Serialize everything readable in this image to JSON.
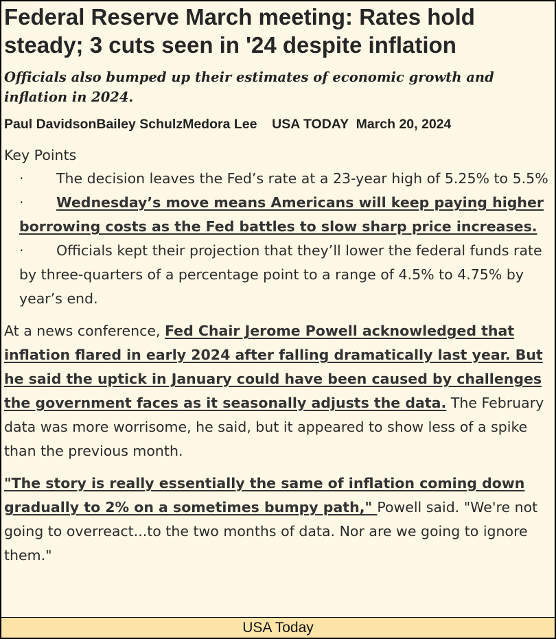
{
  "article": {
    "headline": "Federal Reserve March meeting: Rates hold steady; 3 cuts seen in '24 despite inflation",
    "subheadline": "Officials also bumped up their estimates of economic growth and inflation in 2024.",
    "byline": {
      "authors": "Paul DavidsonBailey SchulzMedora Lee",
      "publication": "USA TODAY",
      "date": "March 20, 2024"
    },
    "key_points": {
      "title": "Key Points",
      "bullet": "·",
      "items": [
        "The decision leaves the Fed’s rate at a 23-year high of 5.25% to 5.5%",
        "Wednesday’s move means Americans will keep paying higher borrowing costs as the Fed battles to slow sharp price increases.",
        "Officials kept their projection that they’ll lower the federal funds rate by three-quarters of a percentage point to a range of 4.5% to 4.75% by year’s end."
      ]
    },
    "paragraphs": [
      {
        "lead": "At a news conference, ",
        "link": "Fed Chair Jerome Powell acknowledged that inflation flared in early 2024 after falling dramatically last year. But he said the uptick in January could have been caused by challenges the government faces as it seasonally adjusts the data.",
        "tail": " The February data was more worrisome, he said, but it appeared to show less of a spike than the previous month."
      },
      {
        "link": "\"The story is really essentially the same of inflation coming down gradually to 2% on a sometimes bumpy path,\" ",
        "tail": "Powell said. \"We're not going to overreact...to the two months of data. Nor are we going to ignore them.\""
      }
    ]
  },
  "footer": {
    "source": "USA Today"
  }
}
